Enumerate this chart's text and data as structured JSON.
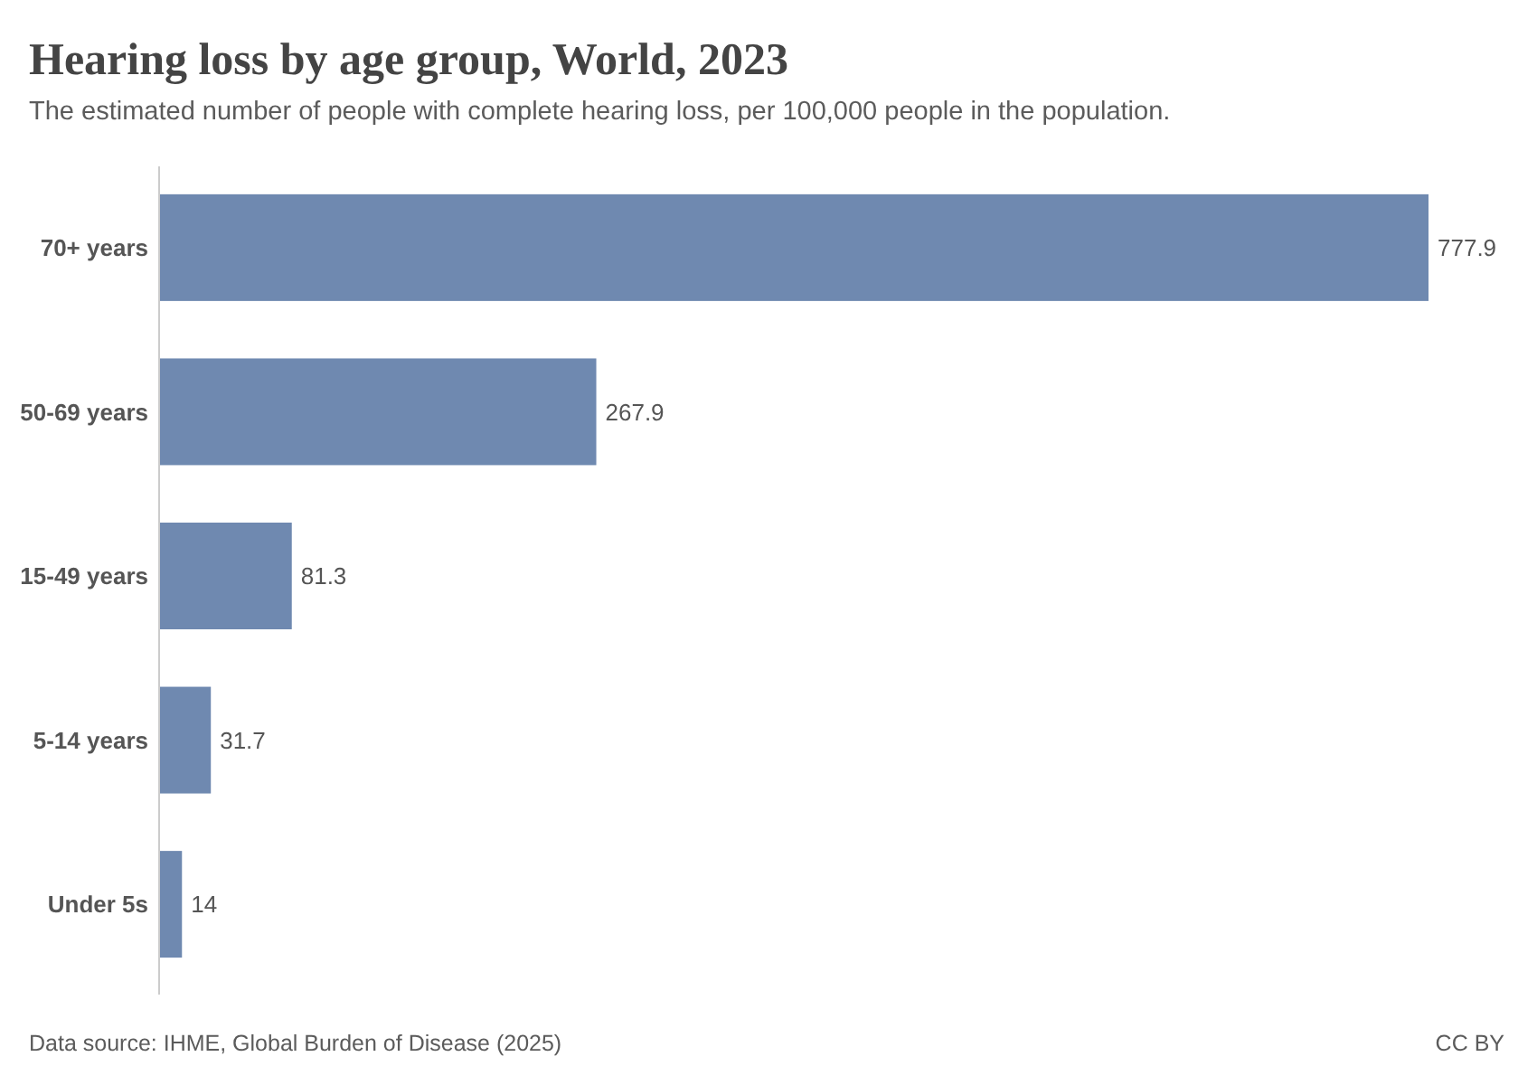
{
  "chart_data": {
    "type": "bar",
    "orientation": "horizontal",
    "title": "Hearing loss by age group, World, 2023",
    "subtitle": "The estimated number of people with complete hearing loss, per 100,000 people in the population.",
    "categories": [
      "70+ years",
      "50-69 years",
      "15-49 years",
      "5-14 years",
      "Under 5s"
    ],
    "values": [
      777.9,
      267.9,
      81.3,
      31.7,
      14
    ],
    "color": "#6f89b0",
    "data_labels": true,
    "annotations": [
      "Data source: IHME, Global Burden of Disease (2025)",
      "CC BY"
    ]
  }
}
